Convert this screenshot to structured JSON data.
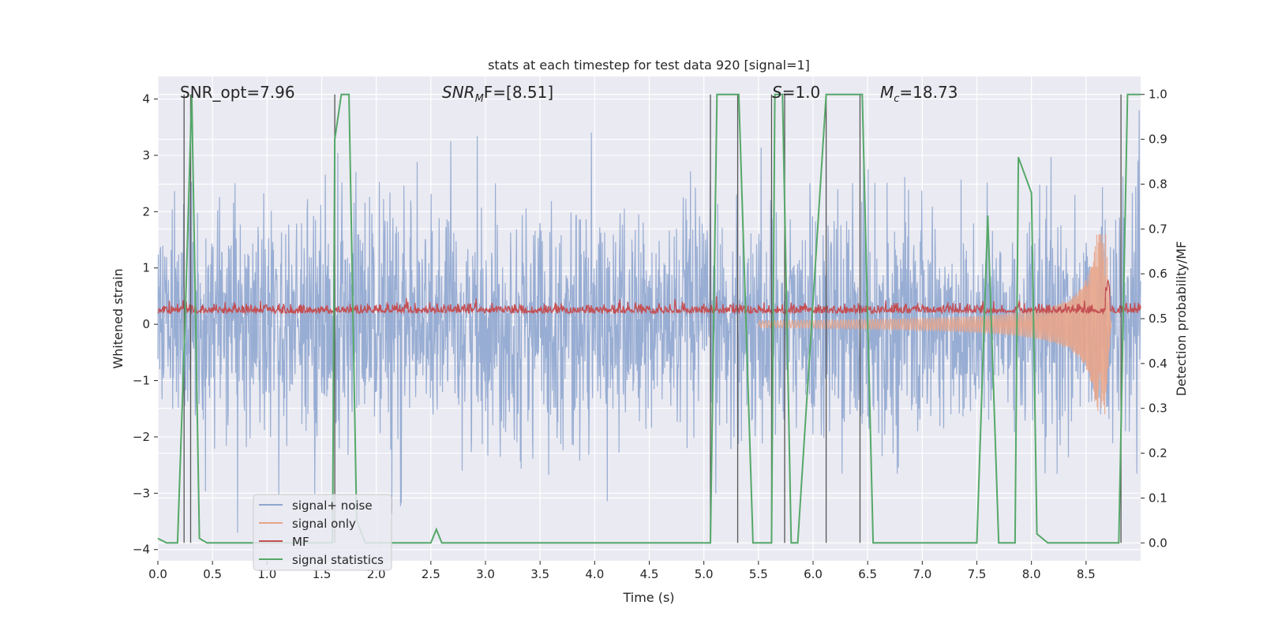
{
  "chart_data": {
    "type": "line",
    "title": "stats at each timestep for test data 920 [signal=1]",
    "xlabel": "Time (s)",
    "ylabel_left": "Whitened strain",
    "ylabel_right": "Detection probability/MF",
    "xlim": [
      0.0,
      9.0
    ],
    "ylim_left": [
      -4.2,
      4.4
    ],
    "ylim_right": [
      -0.04,
      1.04
    ],
    "x_ticks": [
      "0.0",
      "0.5",
      "1.0",
      "1.5",
      "2.0",
      "2.5",
      "3.0",
      "3.5",
      "4.0",
      "4.5",
      "5.0",
      "5.5",
      "6.0",
      "6.5",
      "7.0",
      "7.5",
      "8.0",
      "8.5"
    ],
    "y_ticks_left": [
      "−4",
      "−3",
      "−2",
      "−1",
      "0",
      "1",
      "2",
      "3",
      "4"
    ],
    "y_ticks_right": [
      "0.0",
      "0.1",
      "0.2",
      "0.3",
      "0.4",
      "0.5",
      "0.6",
      "0.7",
      "0.8",
      "0.9",
      "1.0"
    ],
    "grid": true,
    "legend_position": "lower-left",
    "annotations": {
      "snr_opt": "SNR_opt=7.96",
      "snr_mf_main": "SNR",
      "snr_mf_sub": "M",
      "snr_mf_rest": "F=[8.51]",
      "s_italic": "S",
      "s_rest": "=1.0",
      "mc_main": "M",
      "mc_sub": "c",
      "mc_rest": "=18.73"
    },
    "series": [
      {
        "name": "signal+ noise",
        "color": "#8fa6cf",
        "description_amplitude_range": [
          -3.7,
          3.8
        ]
      },
      {
        "name": "signal only",
        "color": "#e8a58a",
        "chirp_peak_time": 8.68,
        "chirp_peak_amplitude": 1.6
      },
      {
        "name": "MF",
        "color": "#c44e52",
        "baseline": 0.5,
        "range": [
          0.49,
          0.56
        ]
      },
      {
        "name": "signal statistics",
        "color": "#55a868",
        "x": [
          0.0,
          0.08,
          0.18,
          0.25,
          0.31,
          0.38,
          0.45,
          0.55,
          1.6,
          1.62,
          1.68,
          1.75,
          1.82,
          1.9,
          2.0,
          2.5,
          2.55,
          2.6,
          2.7,
          3.5,
          4.5,
          5.06,
          5.12,
          5.32,
          5.45,
          5.62,
          5.65,
          5.72,
          5.8,
          5.86,
          6.12,
          6.18,
          6.45,
          6.55,
          7.0,
          7.5,
          7.6,
          7.7,
          7.85,
          7.88,
          8.0,
          8.05,
          8.15,
          8.8,
          8.88,
          8.92,
          9.0
        ],
        "y": [
          0.01,
          0.0,
          0.0,
          0.5,
          1.0,
          0.01,
          0.0,
          0.0,
          0.0,
          0.9,
          1.0,
          1.0,
          0.05,
          0.0,
          0.0,
          0.0,
          0.03,
          0.0,
          0.0,
          0.0,
          0.0,
          0.0,
          1.0,
          1.0,
          0.0,
          0.0,
          1.0,
          1.0,
          0.0,
          0.0,
          1.0,
          1.0,
          1.0,
          0.0,
          0.0,
          0.0,
          0.73,
          0.0,
          0.0,
          0.86,
          0.78,
          0.02,
          0.0,
          0.0,
          1.0,
          1.0,
          1.0
        ]
      }
    ],
    "vertical_markers_s": [
      0.24,
      0.3,
      1.62,
      5.06,
      5.31,
      5.62,
      5.74,
      6.12,
      6.43,
      8.82
    ]
  },
  "legend": {
    "items": [
      {
        "label": "signal+ noise",
        "color": "#8fa6cf"
      },
      {
        "label": "signal only",
        "color": "#e8a58a"
      },
      {
        "label": "MF",
        "color": "#c44e52"
      },
      {
        "label": "signal statistics",
        "color": "#55a868"
      }
    ]
  }
}
